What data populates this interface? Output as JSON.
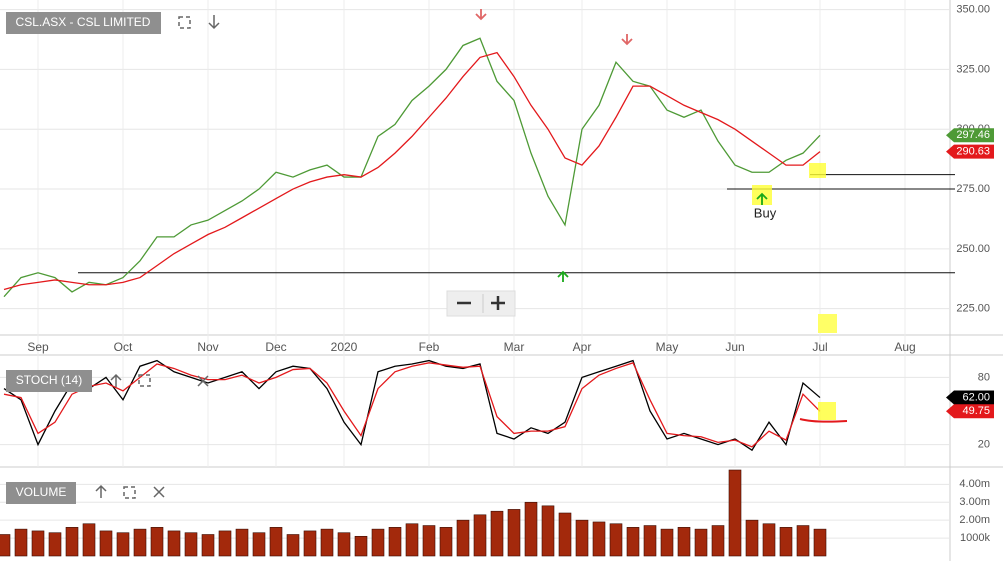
{
  "chart_data": [
    {
      "type": "price",
      "title": "CSL.ASX - CSL LIMITED",
      "categories": [
        null,
        null,
        "Sep",
        null,
        null,
        null,
        null,
        "Oct",
        null,
        null,
        null,
        null,
        "Nov",
        null,
        null,
        null,
        "Dec",
        null,
        null,
        null,
        "2020",
        null,
        null,
        null,
        null,
        "Feb",
        null,
        null,
        null,
        null,
        "Mar",
        null,
        null,
        null,
        "Apr",
        null,
        null,
        null,
        null,
        "May",
        null,
        null,
        null,
        "Jun",
        null,
        null,
        null,
        null,
        "Jul",
        null,
        null,
        null,
        null,
        "Aug",
        null,
        null
      ],
      "series": [
        {
          "color": "#4e9a36",
          "values": [
            230,
            238,
            240,
            238,
            232,
            236,
            235,
            238,
            245,
            255,
            255,
            260,
            262,
            266,
            270,
            275,
            282,
            280,
            283,
            285,
            280,
            280,
            297,
            302,
            312,
            318,
            325,
            335,
            338,
            320,
            312,
            290,
            272,
            260,
            300,
            310,
            328,
            320,
            318,
            308,
            305,
            308,
            295,
            285,
            282,
            282,
            287,
            290,
            297.46,
            null,
            null,
            null,
            null,
            null,
            null,
            null
          ]
        },
        {
          "color": "#e3191c",
          "values": [
            233,
            235,
            236,
            237,
            236,
            235,
            235,
            236,
            238,
            243,
            248,
            252,
            256,
            259,
            263,
            267,
            271,
            275,
            278,
            280,
            281,
            280,
            284,
            290,
            297,
            305,
            313,
            322,
            330,
            332,
            322,
            310,
            300,
            288,
            285,
            293,
            305,
            318,
            318,
            314,
            310,
            307,
            304,
            300,
            295,
            290,
            285,
            285,
            290.63,
            null,
            null,
            null,
            null,
            null,
            null,
            null
          ]
        }
      ],
      "last_values": [
        297.46,
        290.63
      ],
      "hlines": [
        240,
        275,
        281
      ],
      "annotation": "Buy",
      "ylim": [
        214,
        354
      ],
      "yticks": [
        {
          "value": 225,
          "label": "225.00"
        },
        {
          "value": 250,
          "label": "250.00"
        },
        {
          "value": 275,
          "label": "275.00"
        },
        {
          "value": 300,
          "label": "300.00"
        },
        {
          "value": 325,
          "label": "325.00"
        },
        {
          "value": 350,
          "label": "350.00"
        }
      ],
      "grid": true
    },
    {
      "type": "stoch",
      "title": "STOCH (14)",
      "series": [
        {
          "color": "#000000",
          "values": [
            70,
            60,
            20,
            50,
            75,
            70,
            80,
            60,
            90,
            95,
            85,
            80,
            75,
            80,
            85,
            70,
            85,
            90,
            88,
            70,
            40,
            20,
            85,
            90,
            92,
            95,
            90,
            88,
            92,
            30,
            25,
            35,
            30,
            40,
            80,
            85,
            90,
            95,
            50,
            25,
            30,
            25,
            20,
            25,
            15,
            40,
            20,
            75,
            62,
            null,
            null,
            null,
            null,
            null,
            null,
            null
          ]
        },
        {
          "color": "#e3191c",
          "values": [
            65,
            62,
            30,
            40,
            65,
            72,
            75,
            68,
            80,
            92,
            88,
            82,
            78,
            78,
            82,
            75,
            80,
            87,
            88,
            75,
            50,
            28,
            70,
            85,
            90,
            93,
            91,
            89,
            90,
            45,
            30,
            32,
            32,
            36,
            70,
            82,
            88,
            93,
            60,
            30,
            28,
            27,
            22,
            24,
            18,
            32,
            24,
            65,
            49.75,
            null,
            null,
            null,
            null,
            null,
            null,
            null
          ]
        }
      ],
      "last_values": [
        {
          "value": 62,
          "label": "62.00"
        },
        {
          "value": 49.75,
          "label": "49.75"
        }
      ],
      "ylim": [
        0,
        100
      ],
      "yticks": [
        20,
        80
      ],
      "grid": true
    },
    {
      "type": "volume",
      "title": "VOLUME",
      "color": "#a3290c",
      "values": [
        1.2,
        1.5,
        1.4,
        1.3,
        1.6,
        1.8,
        1.4,
        1.3,
        1.5,
        1.6,
        1.4,
        1.3,
        1.2,
        1.4,
        1.5,
        1.3,
        1.6,
        1.2,
        1.4,
        1.5,
        1.3,
        1.1,
        1.5,
        1.6,
        1.8,
        1.7,
        1.6,
        2.0,
        2.3,
        2.5,
        2.6,
        3.0,
        2.8,
        2.4,
        2.0,
        1.9,
        1.8,
        1.6,
        1.7,
        1.5,
        1.6,
        1.5,
        1.7,
        4.8,
        2.0,
        1.8,
        1.6,
        1.7,
        1.5,
        null,
        null,
        null,
        null,
        null,
        null,
        null
      ],
      "ylim": [
        0,
        4.8
      ],
      "yticks": [
        {
          "value": 1,
          "label": "1000k"
        },
        {
          "value": 2,
          "label": "2.00m"
        },
        {
          "value": 3,
          "label": "3.00m"
        },
        {
          "value": 4,
          "label": "4.00m"
        }
      ],
      "grid": true
    }
  ]
}
